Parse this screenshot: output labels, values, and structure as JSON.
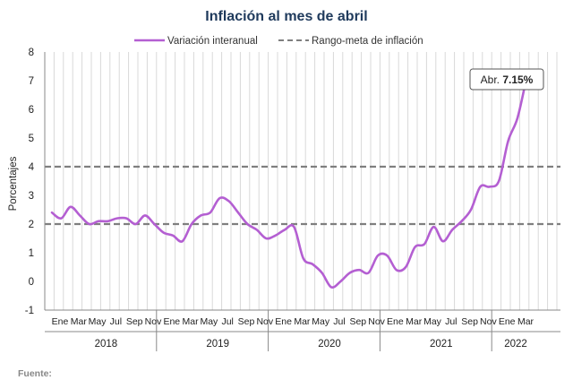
{
  "chart_data": {
    "type": "line",
    "title": "Inflación al mes de abril",
    "ylabel": "Porcentajes",
    "xlabel": "",
    "ylim": [
      -1,
      8
    ],
    "y_ticks": [
      "8",
      "7",
      "6",
      "5",
      "4",
      "3",
      "2",
      "1",
      "0",
      "-1"
    ],
    "grid": "vertical",
    "legend_position": "top",
    "legend": [
      {
        "name": "Variación interanual",
        "style": "solid",
        "color": "#b45fd2"
      },
      {
        "name": "Rango-meta de inflación",
        "style": "dashed",
        "color": "#7f7f7f"
      }
    ],
    "month_labels": [
      "Ene",
      "Mar",
      "May",
      "Jul",
      "Sep",
      "Nov",
      "Ene",
      "Mar",
      "May",
      "Jul",
      "Sep",
      "Nov",
      "Ene",
      "Mar",
      "May",
      "Jul",
      "Sep",
      "Nov",
      "Ene",
      "Mar",
      "May",
      "Jul",
      "Sep",
      "Nov",
      "Ene",
      "Mar"
    ],
    "years": [
      "2018",
      "2019",
      "2020",
      "2021",
      "2022"
    ],
    "series": [
      {
        "name": "Variación interanual",
        "color": "#b45fd2",
        "x": [
          "2018-01",
          "2018-02",
          "2018-03",
          "2018-04",
          "2018-05",
          "2018-06",
          "2018-07",
          "2018-08",
          "2018-09",
          "2018-10",
          "2018-11",
          "2018-12",
          "2019-01",
          "2019-02",
          "2019-03",
          "2019-04",
          "2019-05",
          "2019-06",
          "2019-07",
          "2019-08",
          "2019-09",
          "2019-10",
          "2019-11",
          "2019-12",
          "2020-01",
          "2020-02",
          "2020-03",
          "2020-04",
          "2020-05",
          "2020-06",
          "2020-07",
          "2020-08",
          "2020-09",
          "2020-10",
          "2020-11",
          "2020-12",
          "2021-01",
          "2021-02",
          "2021-03",
          "2021-04",
          "2021-05",
          "2021-06",
          "2021-07",
          "2021-08",
          "2021-09",
          "2021-10",
          "2021-11",
          "2021-12",
          "2022-01",
          "2022-02",
          "2022-03",
          "2022-04"
        ],
        "values": [
          2.4,
          2.2,
          2.6,
          2.3,
          2.0,
          2.1,
          2.1,
          2.2,
          2.2,
          2.0,
          2.3,
          2.0,
          1.7,
          1.6,
          1.4,
          2.0,
          2.3,
          2.4,
          2.9,
          2.8,
          2.4,
          2.0,
          1.8,
          1.5,
          1.6,
          1.8,
          1.9,
          0.8,
          0.6,
          0.3,
          -0.2,
          0.0,
          0.3,
          0.4,
          0.3,
          0.9,
          0.9,
          0.4,
          0.5,
          1.2,
          1.3,
          1.9,
          1.4,
          1.8,
          2.1,
          2.5,
          3.3,
          3.3,
          3.5,
          4.9,
          5.7,
          7.15
        ]
      },
      {
        "name": "Rango-meta de inflación",
        "color": "#7f7f7f",
        "style": "dashed",
        "constant_values": [
          2,
          4
        ]
      }
    ],
    "annotation": {
      "prefix": "Abr. ",
      "value": "7.15%"
    }
  },
  "footer": {
    "source_label": "Fuente:"
  }
}
